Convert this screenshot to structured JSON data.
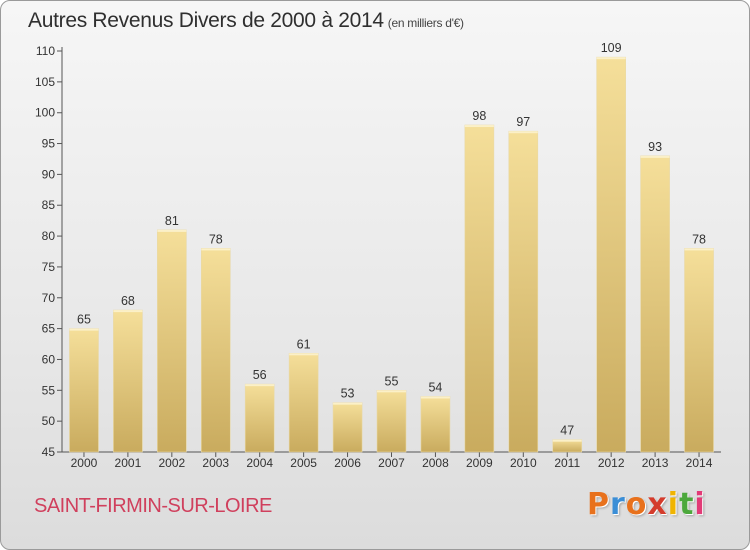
{
  "title": "Autres Revenus Divers de 2000 à 2014",
  "subtitle": "(en milliers d'€)",
  "commune": "SAINT-FIRMIN-SUR-LOIRE",
  "logo": {
    "letters": [
      "P",
      "r",
      "o",
      "x",
      "i",
      "t",
      "i"
    ],
    "colors": [
      "#e8711c",
      "#3b8ed6",
      "#e8711c",
      "#d43c2c",
      "#f0b400",
      "#4ca83c",
      "#e23b77"
    ]
  },
  "colors": {
    "bar_top": "#f5df9a",
    "bar_bottom": "#c9ab5e",
    "commune": "#d0405d"
  },
  "chart_data": {
    "type": "bar",
    "title": "Autres Revenus Divers de 2000 à 2014",
    "subtitle": "(en milliers d'€)",
    "categories": [
      "2000",
      "2001",
      "2002",
      "2003",
      "2004",
      "2005",
      "2006",
      "2007",
      "2008",
      "2009",
      "2010",
      "2011",
      "2012",
      "2013",
      "2014"
    ],
    "values": [
      65,
      68,
      81,
      78,
      56,
      61,
      53,
      55,
      54,
      98,
      97,
      47,
      109,
      93,
      78
    ],
    "ylim": [
      45,
      110
    ],
    "yticks": [
      45,
      50,
      55,
      60,
      65,
      70,
      75,
      80,
      85,
      90,
      95,
      100,
      105,
      110
    ],
    "grid": false,
    "data_labels": true
  }
}
